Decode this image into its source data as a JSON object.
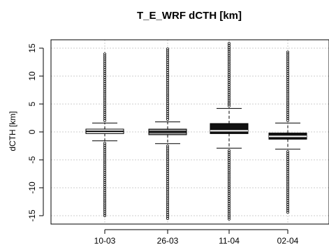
{
  "chart_data": {
    "type": "boxplot",
    "title": "T_E_WRF dCTH [km]",
    "xlabel": "",
    "ylabel": "dCTH [km]",
    "ylim": [
      -16.5,
      16.5
    ],
    "yticks": [
      -15,
      -10,
      -5,
      0,
      5,
      10,
      15
    ],
    "grid": true,
    "categories": [
      "10-03",
      "26-03",
      "11-04",
      "02-04"
    ],
    "boxes": [
      {
        "name": "10-03",
        "fill": "#ffffff",
        "q1": -0.3,
        "median": 0.1,
        "q3": 0.5,
        "whisker_low": -1.6,
        "whisker_high": 1.6,
        "outlier_min": -15.3,
        "outlier_max": 14.2
      },
      {
        "name": "26-03",
        "fill": "#888888",
        "q1": -0.5,
        "median": 0.0,
        "q3": 0.5,
        "whisker_low": -2.1,
        "whisker_high": 1.8,
        "outlier_min": -15.5,
        "outlier_max": 15.0
      },
      {
        "name": "11-04",
        "fill": "#111111",
        "q1": -0.3,
        "median": 0.2,
        "q3": 1.5,
        "whisker_low": -2.9,
        "whisker_high": 4.2,
        "outlier_min": -15.6,
        "outlier_max": 15.9
      },
      {
        "name": "02-04",
        "fill": "#111111",
        "q1": -1.3,
        "median": -0.8,
        "q3": -0.2,
        "whisker_low": -3.1,
        "whisker_high": 1.6,
        "outlier_min": -14.5,
        "outlier_max": 14.4
      }
    ]
  }
}
